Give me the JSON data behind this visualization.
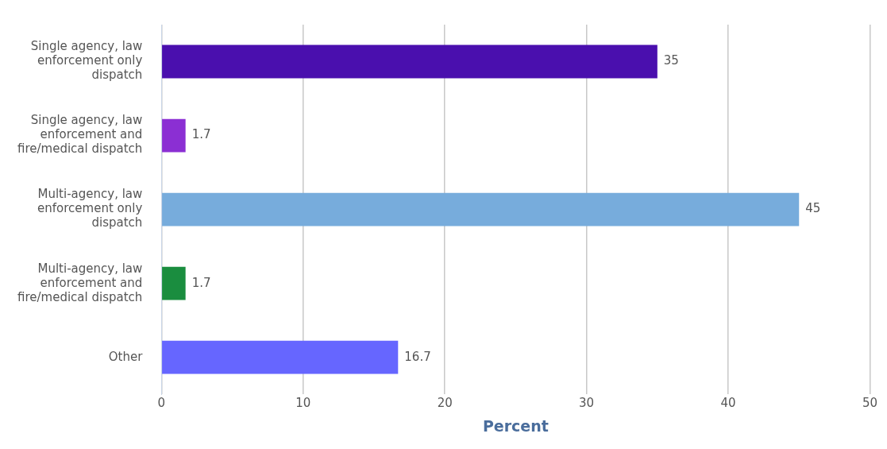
{
  "chart_data": {
    "type": "bar",
    "orientation": "horizontal",
    "xlabel": "Percent",
    "categories": [
      "Single agency, law enforcement only dispatch",
      "Single agency, law enforcement and fire/medical dispatch",
      "Multi-agency, law enforcement only dispatch",
      "Multi-agency, law enforcement and fire/medical dispatch",
      "Other"
    ],
    "values": [
      35,
      1.7,
      45,
      1.7,
      16.7
    ],
    "colors": [
      "#4a0fae",
      "#8b2fd3",
      "#77acdc",
      "#1a8d3f",
      "#6666ff"
    ],
    "xlim": [
      0,
      50
    ],
    "xticks": [
      0,
      10,
      20,
      30,
      40,
      50
    ],
    "grid": "x",
    "data_labels": true,
    "legend": false
  }
}
